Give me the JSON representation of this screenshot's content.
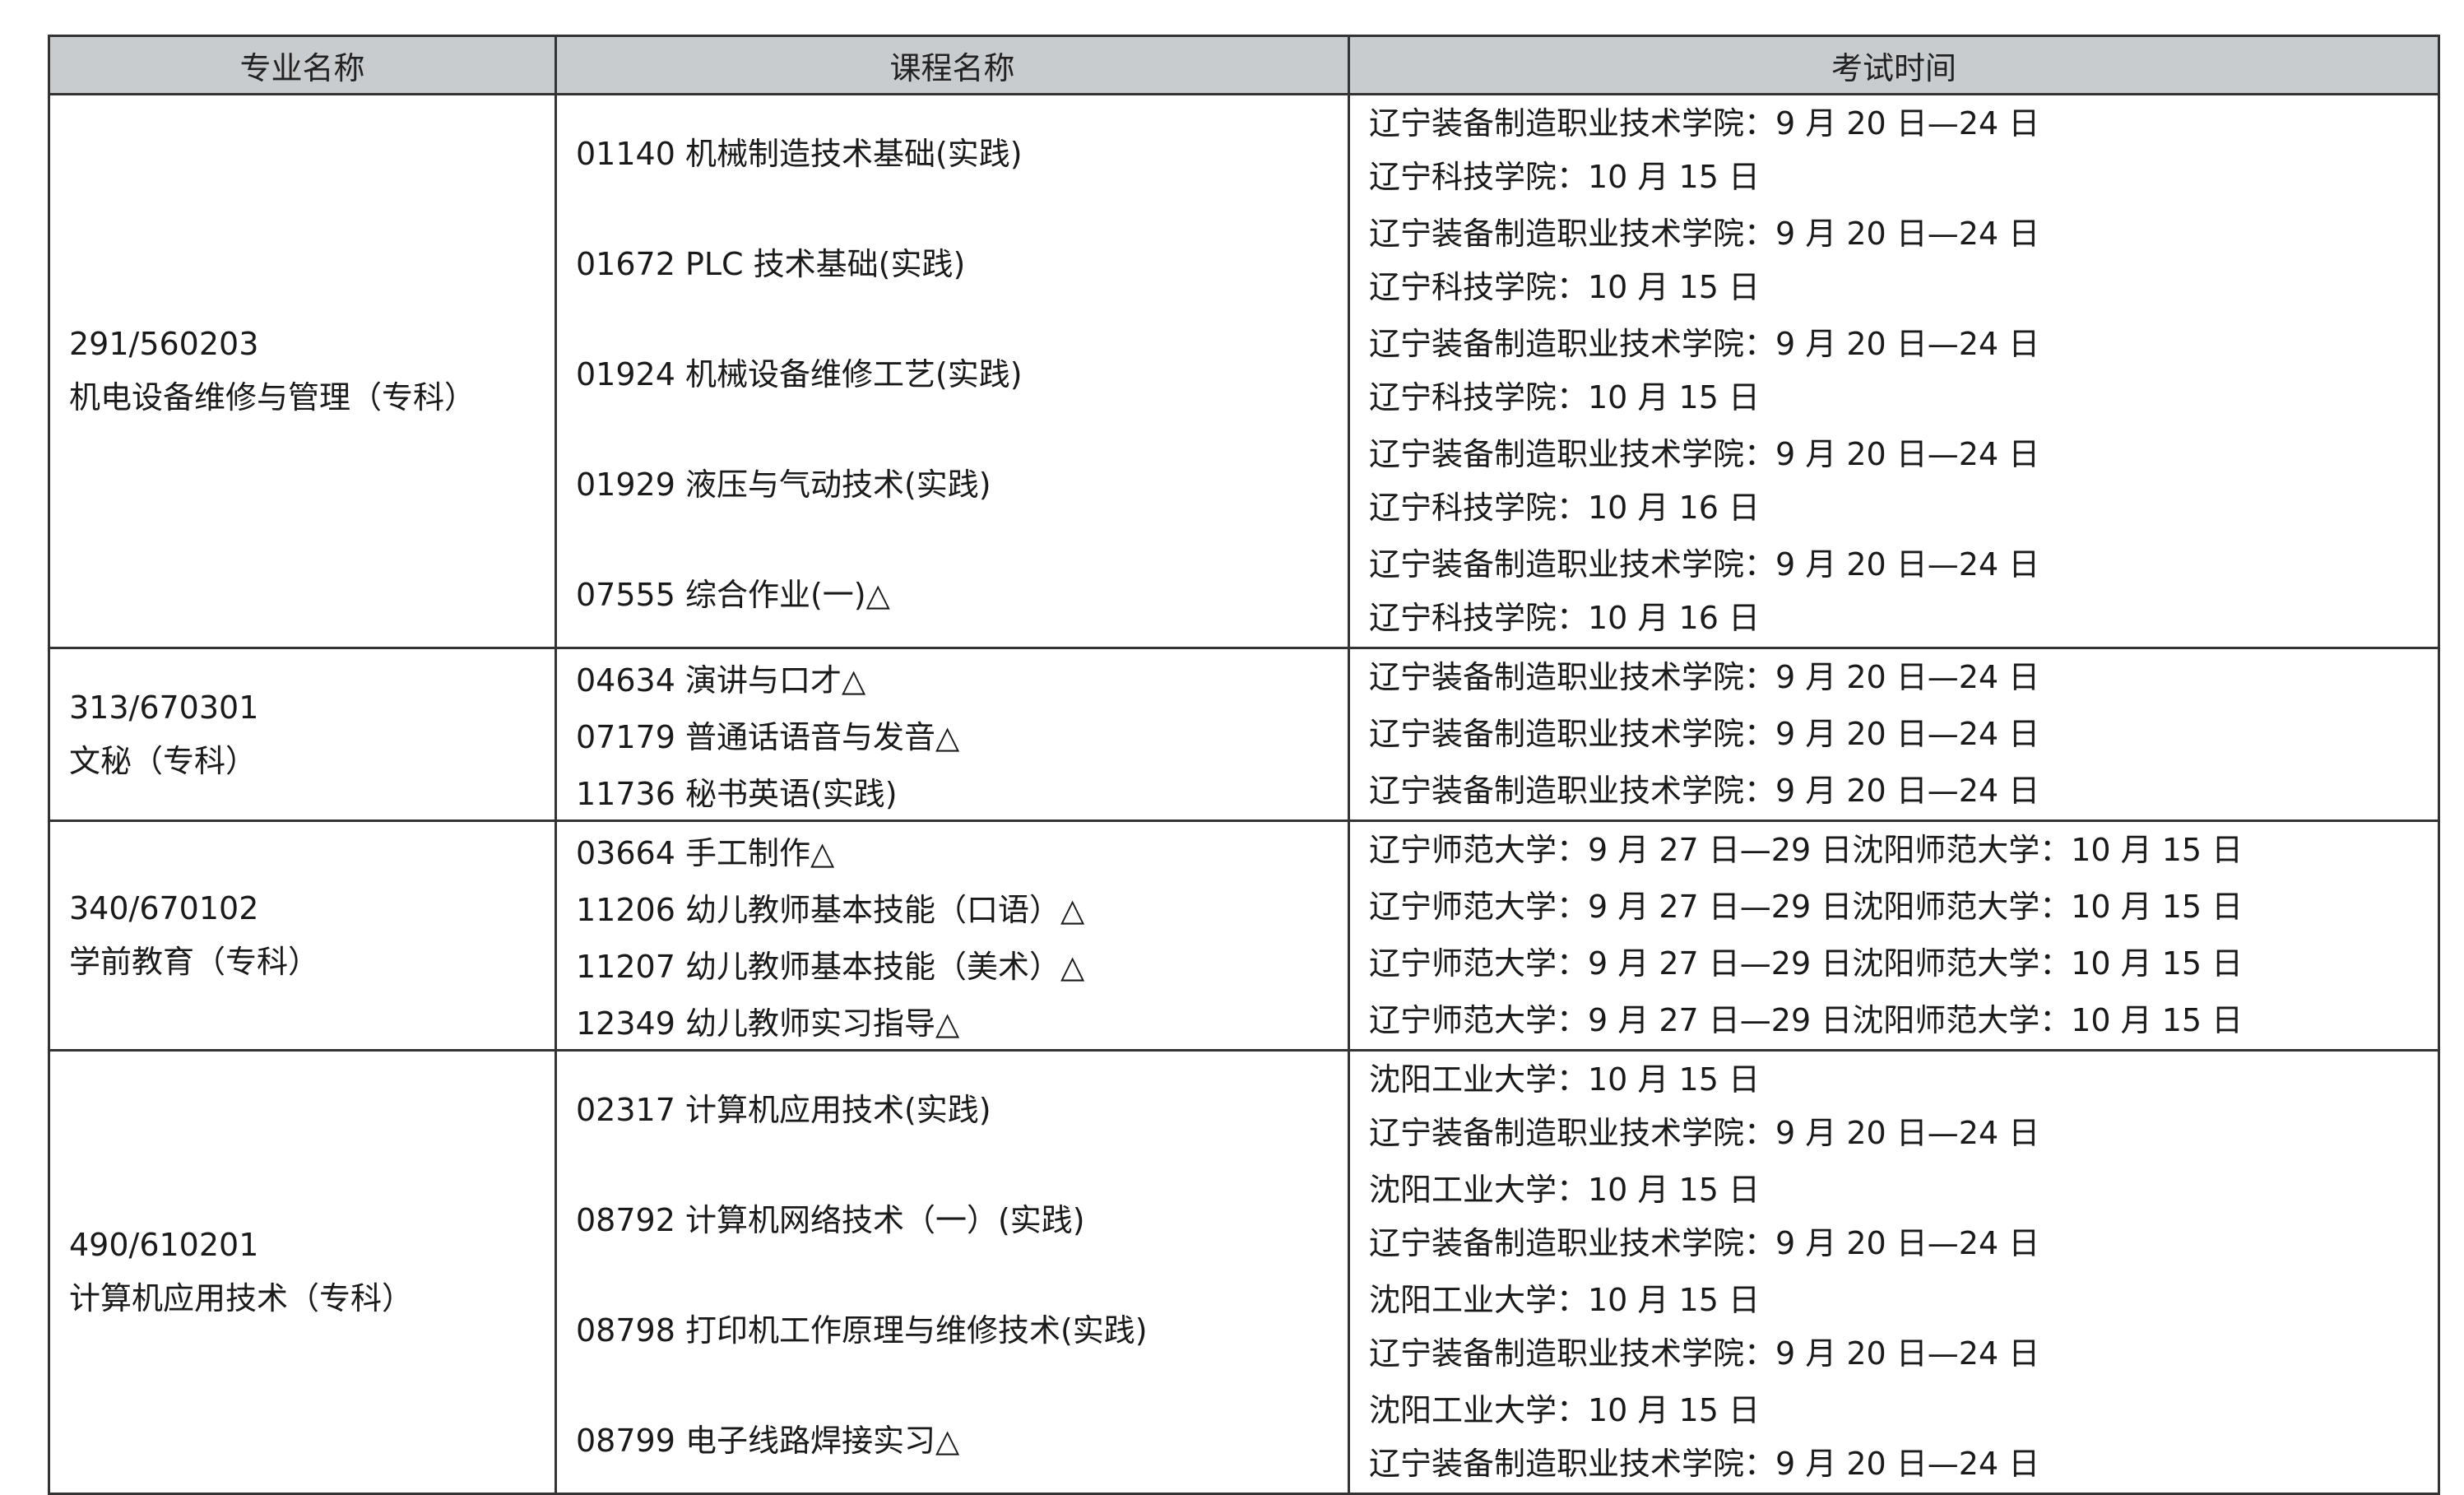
{
  "header": {
    "major": "专业名称",
    "course": "课程名称",
    "time": "考试时间"
  },
  "groups": [
    {
      "code": "291/560203",
      "name": "机电设备维修与管理（专科）",
      "courses": [
        {
          "label": "01140  机械制造技术基础(实践)",
          "times": [
            "辽宁装备制造职业技术学院：9 月 20 日—24 日",
            "辽宁科技学院：10 月 15 日"
          ]
        },
        {
          "label": "01672 PLC 技术基础(实践)",
          "times": [
            "辽宁装备制造职业技术学院：9 月 20 日—24 日",
            "辽宁科技学院：10 月 15 日"
          ]
        },
        {
          "label": "01924  机械设备维修工艺(实践)",
          "times": [
            "辽宁装备制造职业技术学院：9 月 20 日—24 日",
            "辽宁科技学院：10 月 15 日"
          ]
        },
        {
          "label": "01929  液压与气动技术(实践)",
          "times": [
            "辽宁装备制造职业技术学院：9 月 20 日—24 日",
            "辽宁科技学院：10 月 16 日"
          ]
        },
        {
          "label": "07555  综合作业(一)△",
          "times": [
            "辽宁装备制造职业技术学院：9 月 20 日—24 日",
            "辽宁科技学院：10 月 16 日"
          ]
        }
      ]
    },
    {
      "code": "313/670301",
      "name": "文秘（专科）",
      "courses": [
        {
          "label": "04634  演讲与口才△",
          "times": [
            "辽宁装备制造职业技术学院：9 月 20 日—24 日"
          ]
        },
        {
          "label": "07179  普通话语音与发音△",
          "times": [
            "辽宁装备制造职业技术学院：9 月 20 日—24 日"
          ]
        },
        {
          "label": "11736  秘书英语(实践)",
          "times": [
            "辽宁装备制造职业技术学院：9 月 20 日—24 日"
          ]
        }
      ]
    },
    {
      "code": "340/670102",
      "name": "学前教育（专科）",
      "courses": [
        {
          "label": "03664  手工制作△",
          "times": [
            "辽宁师范大学：9 月 27 日—29 日沈阳师范大学：10 月 15 日"
          ]
        },
        {
          "label": "11206  幼儿教师基本技能（口语）△",
          "times": [
            "辽宁师范大学：9 月 27 日—29 日沈阳师范大学：10 月 15 日"
          ]
        },
        {
          "label": "11207  幼儿教师基本技能（美术）△",
          "times": [
            "辽宁师范大学：9 月 27 日—29 日沈阳师范大学：10 月 15 日"
          ]
        },
        {
          "label": "12349  幼儿教师实习指导△",
          "times": [
            "辽宁师范大学：9 月 27 日—29 日沈阳师范大学：10 月 15 日"
          ]
        }
      ]
    },
    {
      "code": "490/610201",
      "name": "计算机应用技术（专科）",
      "courses": [
        {
          "label": "02317  计算机应用技术(实践)",
          "times": [
            "沈阳工业大学：10 月 15 日",
            "辽宁装备制造职业技术学院：9 月 20 日—24 日"
          ]
        },
        {
          "label": "08792  计算机网络技术（一）(实践)",
          "times": [
            "沈阳工业大学：10 月 15 日",
            "辽宁装备制造职业技术学院：9 月 20 日—24 日"
          ]
        },
        {
          "label": "08798  打印机工作原理与维修技术(实践)",
          "times": [
            "沈阳工业大学：10 月 15 日",
            "辽宁装备制造职业技术学院：9 月 20 日—24 日"
          ]
        },
        {
          "label": "08799  电子线路焊接实习△",
          "times": [
            "沈阳工业大学：10 月 15 日",
            "辽宁装备制造职业技术学院：9 月 20 日—24 日"
          ]
        }
      ]
    }
  ]
}
